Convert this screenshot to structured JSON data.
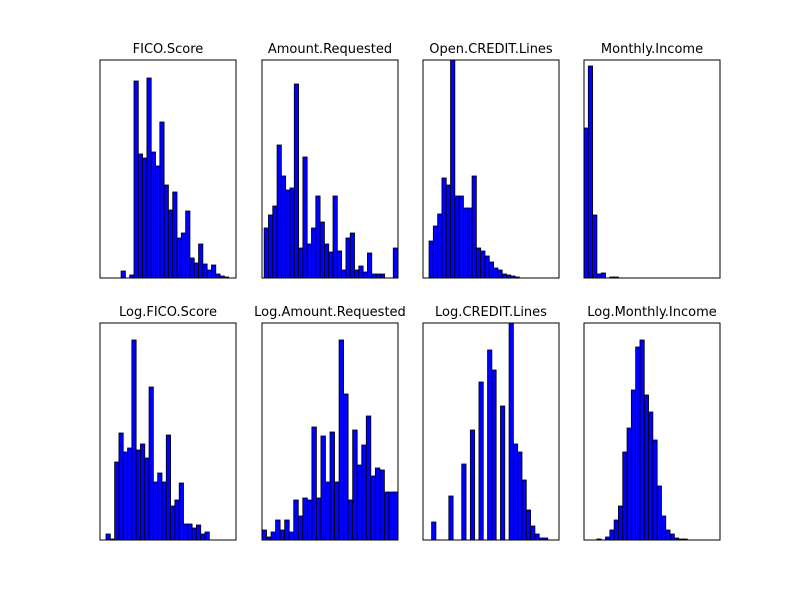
{
  "chart_data": [
    {
      "type": "histogram",
      "title": "FICO.Score",
      "color": "#0000ff",
      "bins": [
        0,
        1,
        2,
        3,
        4,
        5,
        6,
        7,
        8,
        9,
        10,
        11,
        12,
        13,
        14,
        15,
        16,
        17,
        18,
        19,
        20,
        21,
        22,
        23,
        24,
        25
      ],
      "values": [
        7,
        0,
        3,
        197,
        124,
        120,
        200,
        126,
        112,
        156,
        93,
        68,
        86,
        40,
        45,
        67,
        20,
        15,
        34,
        14,
        8,
        13,
        4,
        2,
        1
      ],
      "xlim": [
        -4.9,
        26.7
      ],
      "ylim": [
        0,
        218
      ]
    },
    {
      "type": "histogram",
      "title": "Amount.Requested",
      "color": "#0000ff",
      "bins": [
        0,
        1,
        2,
        3,
        4,
        5,
        6,
        7,
        8,
        9,
        10,
        11,
        12,
        13,
        14,
        15,
        16,
        17,
        18,
        19,
        20,
        21,
        22,
        23,
        24,
        25,
        26,
        27,
        28,
        29,
        30,
        31
      ],
      "values": [
        50,
        63,
        72,
        133,
        102,
        88,
        90,
        194,
        30,
        121,
        34,
        50,
        82,
        56,
        34,
        26,
        82,
        27,
        8,
        40,
        45,
        8,
        12,
        6,
        25,
        4,
        4,
        4,
        0,
        0,
        30
      ],
      "xlim": [
        -0.5,
        31.1
      ],
      "ylim": [
        0,
        218
      ]
    },
    {
      "type": "histogram",
      "title": "Open.CREDIT.Lines",
      "color": "#0000ff",
      "bins": [
        0,
        1,
        2,
        3,
        4,
        5,
        6,
        7,
        8,
        9,
        10,
        11,
        12,
        13,
        14,
        15,
        16,
        17,
        18,
        19,
        20,
        21
      ],
      "values": [
        37,
        52,
        64,
        100,
        93,
        218,
        82,
        82,
        70,
        70,
        102,
        30,
        27,
        22,
        16,
        10,
        8,
        4,
        3,
        2,
        1
      ],
      "xlim": [
        -1.4,
        30.2
      ],
      "ylim": [
        0,
        218
      ]
    },
    {
      "type": "histogram",
      "title": "Monthly.Income",
      "color": "#0000ff",
      "bins": [
        0,
        1,
        2,
        3,
        4,
        5,
        6,
        7,
        8
      ],
      "values": [
        150,
        212,
        63,
        4,
        5,
        0,
        1,
        1
      ],
      "xlim": [
        0,
        31.6
      ],
      "ylim": [
        0,
        218
      ]
    },
    {
      "type": "histogram",
      "title": "Log.FICO.Score",
      "color": "#0000ff",
      "bins": [
        0,
        1,
        2,
        3,
        4,
        5,
        6,
        7,
        8,
        9,
        10,
        11,
        12,
        13,
        14,
        15,
        16,
        17,
        18,
        19,
        20,
        21,
        22,
        23,
        24,
        25,
        26
      ],
      "values": [
        6,
        1,
        78,
        107,
        88,
        92,
        200,
        90,
        96,
        82,
        153,
        58,
        67,
        58,
        105,
        34,
        40,
        57,
        16,
        16,
        12,
        15,
        6,
        8,
        0,
        0
      ],
      "xlim": [
        -1.4,
        30.2
      ],
      "ylim": [
        0,
        217
      ]
    },
    {
      "type": "histogram",
      "title": "Log.Amount.Requested",
      "color": "#0000ff",
      "bins": [
        0,
        1,
        2,
        3,
        4,
        5,
        6,
        7,
        8,
        9,
        10,
        11,
        12,
        13,
        14,
        15,
        16,
        17,
        18,
        19,
        20,
        21,
        22,
        23,
        24,
        25,
        26,
        27,
        28,
        29,
        30
      ],
      "values": [
        10,
        3,
        8,
        20,
        10,
        20,
        8,
        40,
        24,
        42,
        40,
        113,
        42,
        104,
        58,
        108,
        58,
        200,
        146,
        40,
        110,
        75,
        95,
        124,
        64,
        72,
        70,
        48,
        48,
        48
      ],
      "xlim": [
        0,
        30
      ],
      "ylim": [
        0,
        217
      ]
    },
    {
      "type": "histogram",
      "title": "Log.CREDIT.Lines",
      "color": "#0000ff",
      "bins": [
        0,
        1,
        2,
        3,
        4,
        5,
        6,
        7,
        8,
        9,
        10,
        11,
        12,
        13,
        14,
        15,
        16,
        17,
        18,
        19,
        20,
        21,
        22,
        23,
        24,
        25,
        26,
        27
      ],
      "values": [
        18,
        0,
        0,
        0,
        44,
        0,
        0,
        76,
        0,
        110,
        0,
        158,
        0,
        190,
        170,
        0,
        134,
        0,
        218,
        96,
        88,
        60,
        30,
        14,
        6,
        2,
        2
      ],
      "xlim": [
        -2,
        29.6
      ],
      "ylim": [
        0,
        217
      ]
    },
    {
      "type": "histogram",
      "title": "Log.Monthly.Income",
      "color": "#0000ff",
      "bins": [
        0,
        1,
        2,
        3,
        4,
        5,
        6,
        7,
        8,
        9,
        10,
        11,
        12,
        13,
        14,
        15,
        16,
        17,
        18,
        19,
        20,
        21
      ],
      "values": [
        1,
        0,
        3,
        10,
        20,
        34,
        88,
        112,
        150,
        193,
        200,
        145,
        128,
        100,
        54,
        24,
        10,
        6,
        2,
        1,
        1
      ],
      "xlim": [
        -3,
        28.6
      ],
      "ylim": [
        0,
        217
      ]
    }
  ]
}
